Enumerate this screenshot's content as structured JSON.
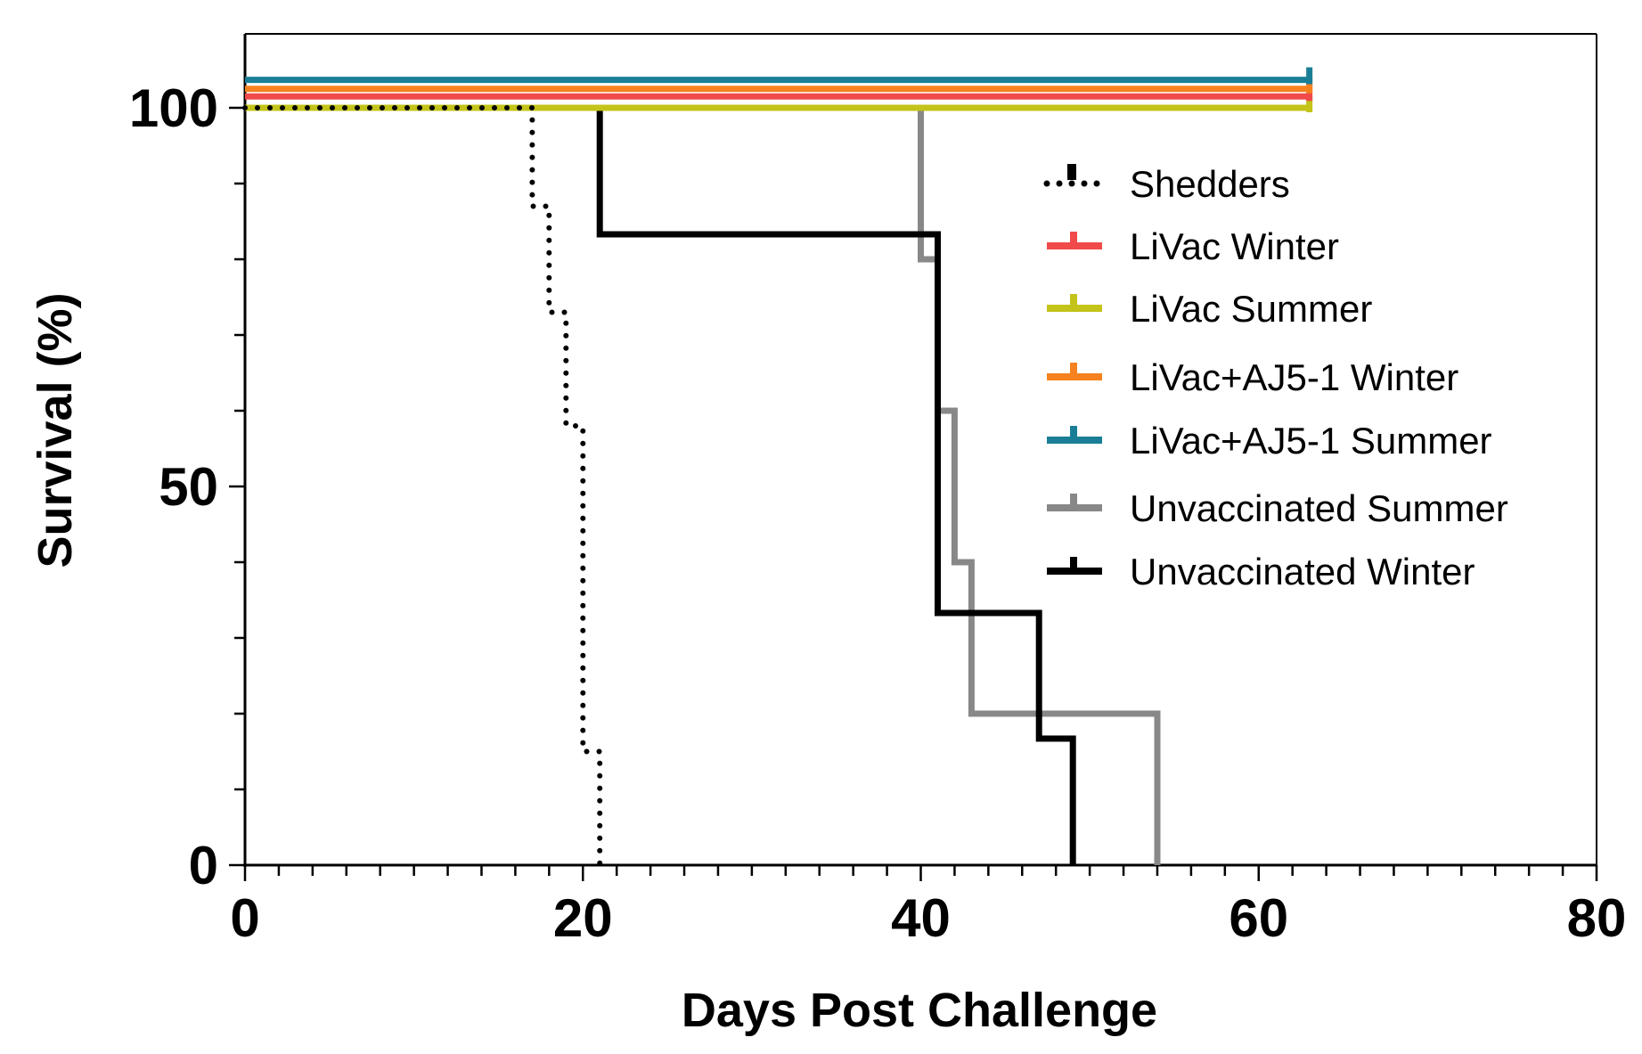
{
  "chart_data": {
    "type": "line",
    "subtype": "kaplan-meier survival curve",
    "title": "",
    "xlabel": "Days Post Challenge",
    "ylabel": "Survival (%)",
    "xlim": [
      0,
      80
    ],
    "ylim": [
      0,
      110
    ],
    "x_ticks": [
      0,
      20,
      40,
      60,
      80
    ],
    "x_tick_labels": [
      "0",
      "20",
      "40",
      "60",
      "80"
    ],
    "y_ticks": [
      0,
      50,
      100
    ],
    "y_tick_labels": [
      "0",
      "50",
      "100"
    ],
    "x_minor_tick_step": 2,
    "y_minor_tick_step": 10,
    "grid": false,
    "legend_position": "right",
    "series": [
      {
        "name": "Shedders",
        "color": "#000000",
        "line_style": "dotted",
        "points": [
          [
            0,
            100
          ],
          [
            17,
            100
          ],
          [
            17,
            87
          ],
          [
            18,
            87
          ],
          [
            18,
            73
          ],
          [
            19,
            73
          ],
          [
            19,
            58
          ],
          [
            20,
            58
          ],
          [
            20,
            15
          ],
          [
            21,
            15
          ],
          [
            21,
            0
          ]
        ]
      },
      {
        "name": "LiVac Winter",
        "color": "#f04a4a",
        "line_style": "solid",
        "points": [
          [
            0,
            101.5
          ],
          [
            63,
            101.5
          ]
        ]
      },
      {
        "name": "LiVac Summer",
        "color": "#c3c31a",
        "line_style": "solid",
        "points": [
          [
            0,
            100
          ],
          [
            63,
            100
          ]
        ]
      },
      {
        "name": "LiVac+AJ5-1 Winter",
        "color": "#f5821f",
        "line_style": "solid",
        "points": [
          [
            0,
            102.5
          ],
          [
            63,
            102.5
          ]
        ]
      },
      {
        "name": "LiVac+AJ5-1 Summer",
        "color": "#1a7f96",
        "line_style": "solid",
        "points": [
          [
            0,
            103.7
          ],
          [
            63,
            103.7
          ]
        ]
      },
      {
        "name": "Unvaccinated Summer",
        "color": "#888888",
        "line_style": "solid",
        "points": [
          [
            0,
            100
          ],
          [
            40,
            100
          ],
          [
            40,
            80
          ],
          [
            41,
            80
          ],
          [
            41,
            60
          ],
          [
            42,
            60
          ],
          [
            42,
            40
          ],
          [
            43,
            40
          ],
          [
            43,
            20
          ],
          [
            54,
            20
          ],
          [
            54,
            0
          ]
        ]
      },
      {
        "name": "Unvaccinated Winter",
        "color": "#000000",
        "line_style": "solid",
        "points": [
          [
            21,
            100
          ],
          [
            21,
            83.3
          ],
          [
            41,
            83.3
          ],
          [
            41,
            33.3
          ],
          [
            47,
            33.3
          ],
          [
            47,
            16.7
          ],
          [
            49,
            16.7
          ],
          [
            49,
            0
          ]
        ]
      }
    ]
  }
}
